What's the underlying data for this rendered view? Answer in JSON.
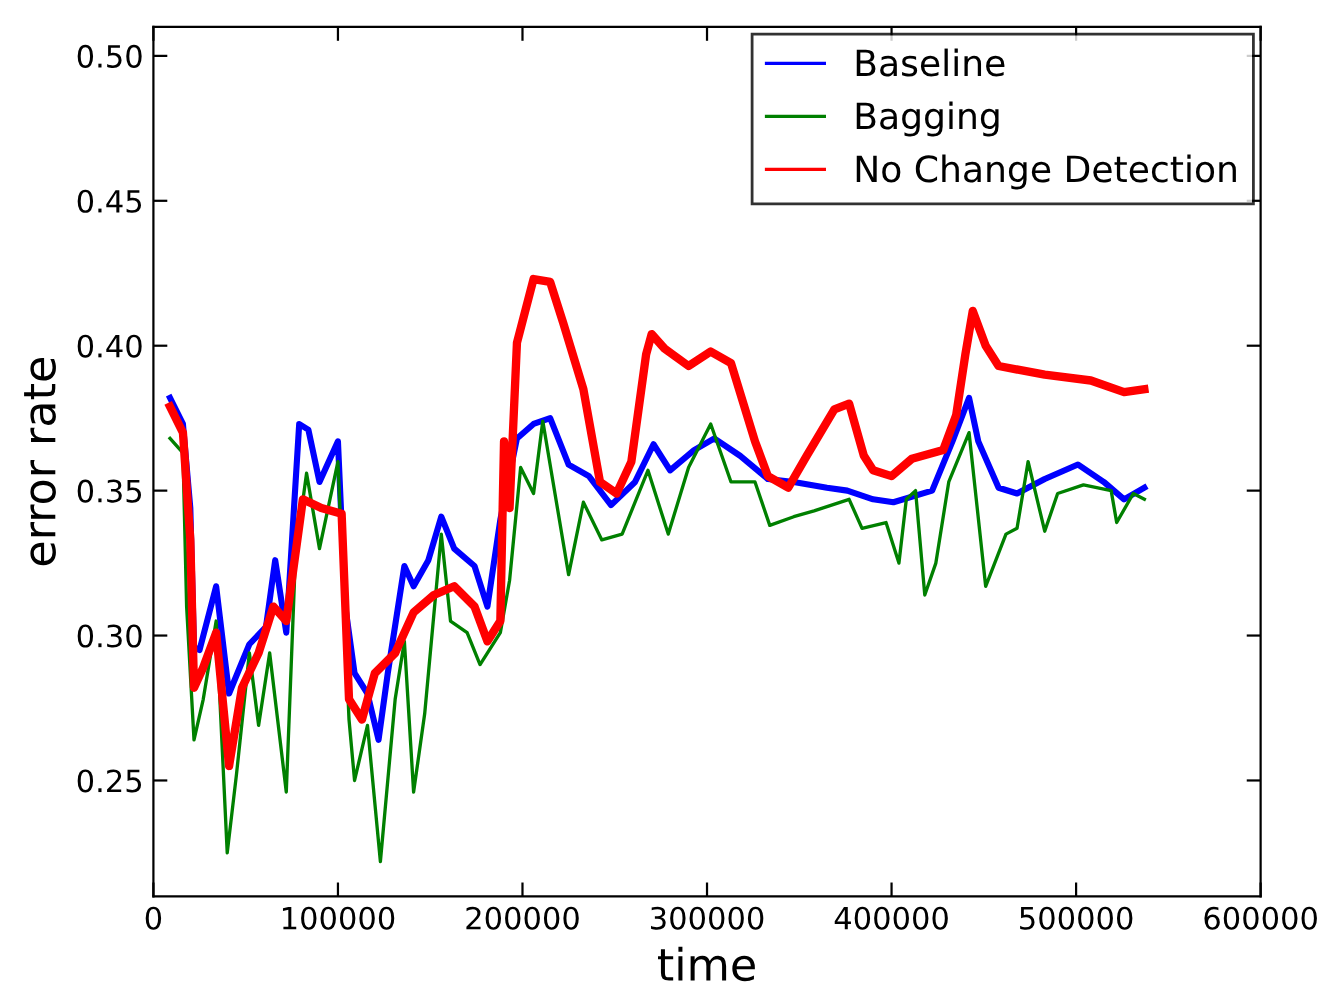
{
  "chart_data": {
    "type": "line",
    "xlabel": "time",
    "ylabel": "error rate",
    "xlim": [
      0,
      600000
    ],
    "xticks": [
      0,
      100000,
      200000,
      300000,
      400000,
      500000,
      600000
    ],
    "ylim": [
      0.21,
      0.51
    ],
    "yticks": [
      {
        "value": 0.25,
        "label": "0.25"
      },
      {
        "value": 0.3,
        "label": "0.30"
      },
      {
        "value": 0.35,
        "label": "0.35"
      },
      {
        "value": 0.4,
        "label": "0.40"
      },
      {
        "value": 0.45,
        "label": "0.45"
      },
      {
        "value": 0.5,
        "label": "0.50"
      }
    ],
    "grid": false,
    "legend": "top right",
    "marker": "none",
    "line_style": "solid",
    "series": [
      {
        "name": "Baseline",
        "color": "#0000ff",
        "x": [
          9000,
          16000,
          20000,
          22000,
          25000,
          34000,
          41000,
          52000,
          61000,
          66000,
          72000,
          79000,
          84000,
          90000,
          100000,
          104000,
          109000,
          116000,
          122000,
          127000,
          136000,
          141000,
          149000,
          156000,
          163000,
          174000,
          181000,
          188000,
          197000,
          206000,
          215000,
          225000,
          236000,
          248000,
          261000,
          271000,
          280000,
          293000,
          304000,
          318000,
          333000,
          347000,
          365000,
          376000,
          390000,
          401000,
          422000,
          433000,
          442000,
          447000,
          458000,
          468000,
          483000,
          501000,
          515000,
          526000,
          537000
        ],
        "values": [
          0.382,
          0.373,
          0.344,
          0.296,
          0.295,
          0.317,
          0.28,
          0.297,
          0.303,
          0.326,
          0.301,
          0.373,
          0.371,
          0.353,
          0.367,
          0.31,
          0.287,
          0.28,
          0.264,
          0.287,
          0.324,
          0.317,
          0.326,
          0.341,
          0.33,
          0.324,
          0.31,
          0.34,
          0.368,
          0.373,
          0.375,
          0.359,
          0.355,
          0.345,
          0.353,
          0.366,
          0.357,
          0.364,
          0.368,
          0.362,
          0.354,
          0.353,
          0.351,
          0.35,
          0.347,
          0.346,
          0.35,
          0.367,
          0.382,
          0.367,
          0.351,
          0.349,
          0.354,
          0.359,
          0.353,
          0.347,
          0.351
        ]
      },
      {
        "name": "Bagging",
        "color": "#008000",
        "x": [
          9000,
          16000,
          18000,
          22000,
          27000,
          34000,
          40000,
          45000,
          52000,
          57000,
          63000,
          72000,
          77000,
          83000,
          90000,
          100000,
          106000,
          109000,
          116000,
          123000,
          131000,
          136000,
          141000,
          147000,
          156000,
          161000,
          170000,
          177000,
          188000,
          193000,
          199000,
          206000,
          211000,
          225000,
          233000,
          243000,
          254000,
          268000,
          279000,
          290000,
          302000,
          313000,
          326000,
          334000,
          347000,
          358000,
          377000,
          384000,
          397000,
          404000,
          408000,
          413000,
          418000,
          424000,
          431000,
          442000,
          451000,
          462000,
          468000,
          474000,
          483000,
          490000,
          504000,
          519000,
          522000,
          531000,
          537000
        ],
        "values": [
          0.368,
          0.363,
          0.31,
          0.264,
          0.278,
          0.305,
          0.225,
          0.252,
          0.294,
          0.269,
          0.294,
          0.246,
          0.328,
          0.356,
          0.33,
          0.36,
          0.271,
          0.25,
          0.269,
          0.222,
          0.278,
          0.298,
          0.246,
          0.273,
          0.335,
          0.305,
          0.301,
          0.29,
          0.301,
          0.319,
          0.358,
          0.349,
          0.374,
          0.321,
          0.346,
          0.333,
          0.335,
          0.357,
          0.335,
          0.358,
          0.373,
          0.353,
          0.353,
          0.338,
          0.341,
          0.343,
          0.347,
          0.337,
          0.339,
          0.325,
          0.347,
          0.35,
          0.314,
          0.325,
          0.353,
          0.37,
          0.317,
          0.335,
          0.337,
          0.36,
          0.336,
          0.349,
          0.352,
          0.35,
          0.339,
          0.349,
          0.347
        ]
      },
      {
        "name": "No Change Detection",
        "color": "#ff0000",
        "x": [
          9000,
          16000,
          20000,
          22000,
          27000,
          34000,
          41000,
          48000,
          57000,
          65000,
          72000,
          81000,
          91000,
          102000,
          106000,
          113000,
          120000,
          131000,
          141000,
          152000,
          163000,
          174000,
          181000,
          188000,
          190000,
          193000,
          197000,
          206000,
          215000,
          222000,
          233000,
          242000,
          251000,
          259000,
          267000,
          270000,
          277000,
          290000,
          302000,
          313000,
          326000,
          333000,
          344000,
          354000,
          369000,
          377000,
          385000,
          390000,
          400000,
          411000,
          428000,
          435000,
          440000,
          444000,
          451000,
          458000,
          483000,
          508000,
          526000,
          537000
        ],
        "values": [
          0.379,
          0.37,
          0.333,
          0.282,
          0.289,
          0.301,
          0.255,
          0.282,
          0.294,
          0.31,
          0.305,
          0.347,
          0.344,
          0.342,
          0.278,
          0.271,
          0.287,
          0.294,
          0.308,
          0.314,
          0.317,
          0.31,
          0.298,
          0.305,
          0.367,
          0.344,
          0.401,
          0.423,
          0.422,
          0.408,
          0.385,
          0.353,
          0.349,
          0.36,
          0.397,
          0.404,
          0.399,
          0.393,
          0.398,
          0.394,
          0.367,
          0.355,
          0.351,
          0.362,
          0.378,
          0.38,
          0.362,
          0.357,
          0.355,
          0.361,
          0.364,
          0.376,
          0.397,
          0.412,
          0.4,
          0.393,
          0.39,
          0.388,
          0.384,
          0.385
        ]
      }
    ]
  }
}
